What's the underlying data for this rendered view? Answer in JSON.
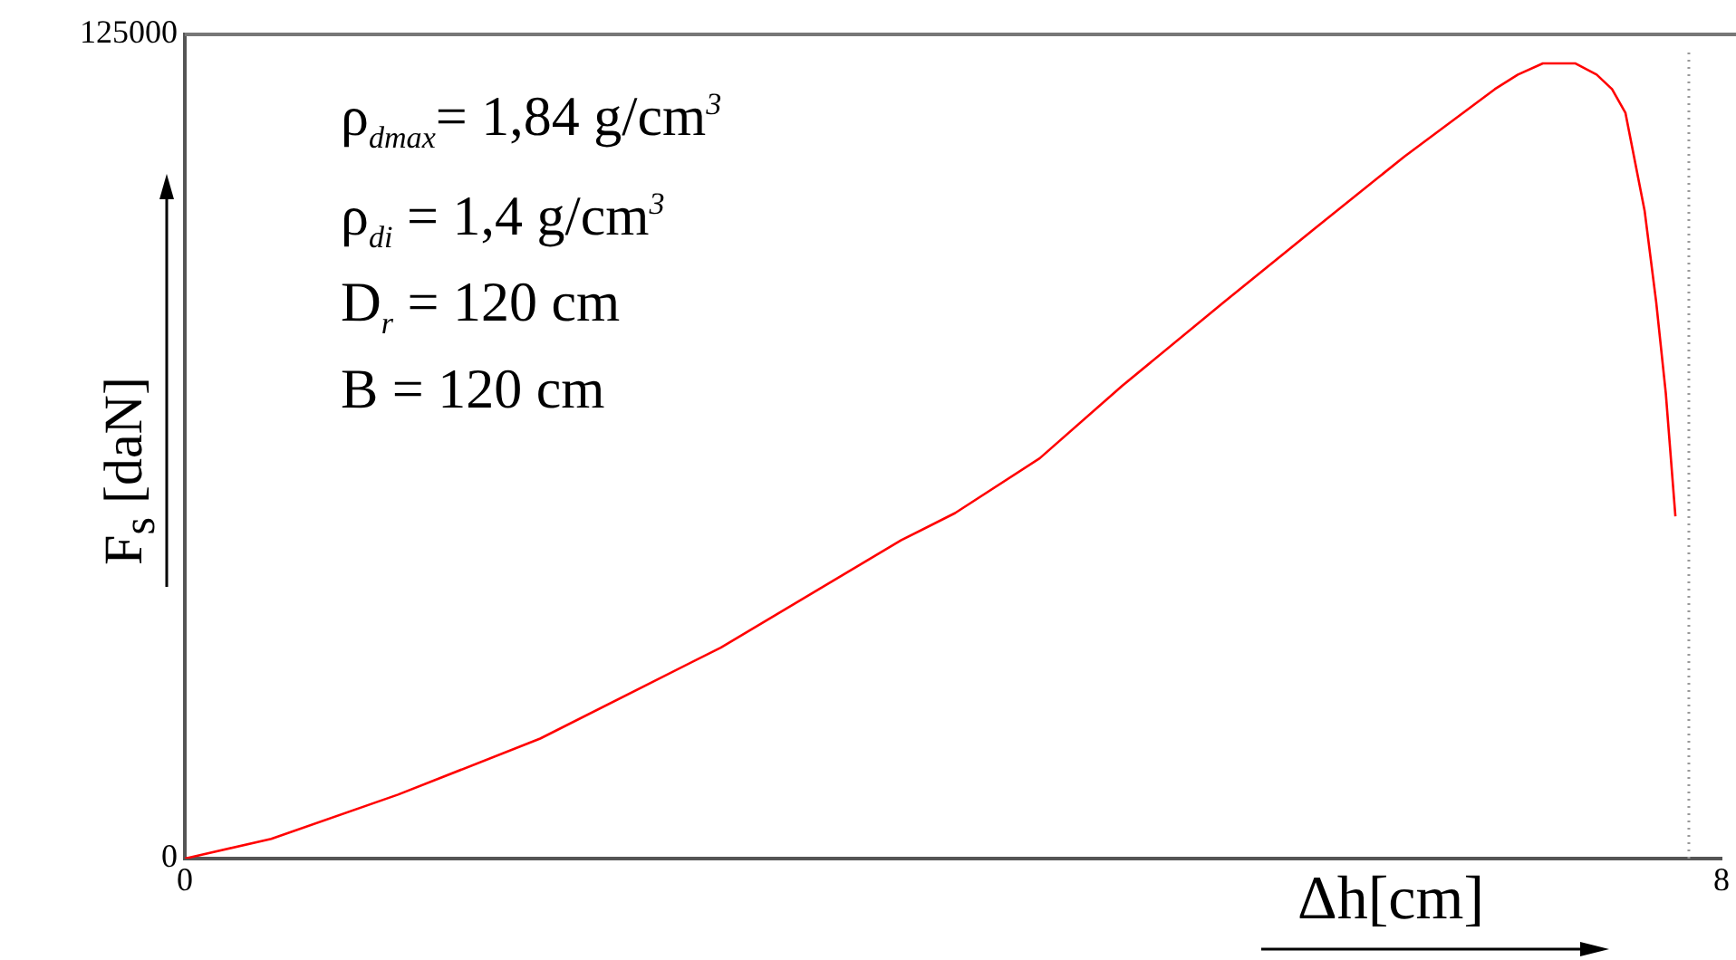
{
  "chart_data": {
    "type": "line",
    "xlabel": "Δh[cm]",
    "ylabel": "F$_{s}$ [daN]",
    "annotations": [
      "ρ$_{dmax}$= 1,84 g/cm$^{3}$",
      "ρ$_{di}$ = 1,4 g/cm$^{3}$",
      "D$_{r}$ = 120 cm",
      "B = 120 cm"
    ],
    "series": [
      {
        "color": "#ff0000",
        "x": [
          0,
          0.45,
          1.11,
          1.85,
          2.79,
          3.73,
          4.01,
          4.45,
          4.88,
          5.41,
          5.88,
          6.35,
          6.82,
          6.94,
          7.07,
          7.24,
          7.35,
          7.43,
          7.5,
          7.6,
          7.66,
          7.71,
          7.76
        ],
        "values": [
          0,
          3000,
          9700,
          18200,
          32000,
          48300,
          52400,
          60700,
          71700,
          84400,
          95500,
          106500,
          116700,
          118900,
          120600,
          120600,
          118900,
          116700,
          113100,
          98200,
          84400,
          70600,
          51900
        ]
      }
    ],
    "xlim": [
      0,
      8
    ],
    "xticks": [
      0,
      8
    ],
    "ylim": [
      0,
      125000
    ],
    "yticks": [
      0,
      125000
    ],
    "ref_lines": [
      {
        "axis": "x",
        "value": 7.83,
        "color": "#999999",
        "line_style": "dotted"
      }
    ],
    "grid": false,
    "legend": false,
    "marker": "none",
    "line_style": "solid"
  }
}
